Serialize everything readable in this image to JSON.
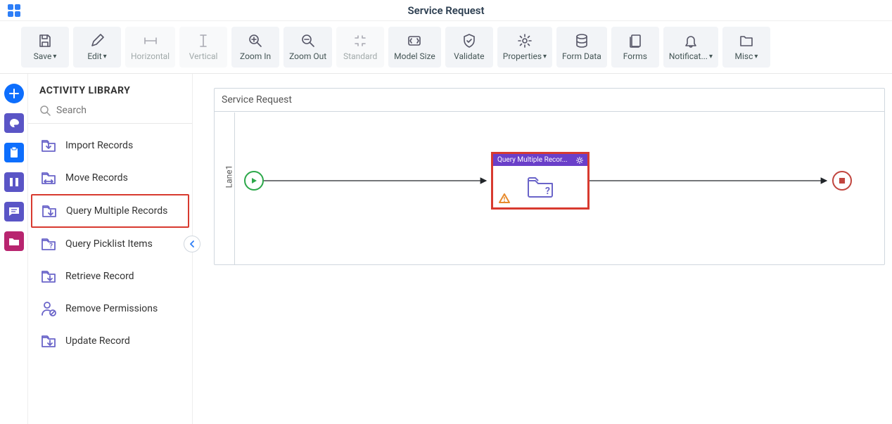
{
  "header": {
    "title": "Service Request"
  },
  "toolbar": [
    {
      "id": "save",
      "label": "Save",
      "dropdown": true,
      "enabled": true
    },
    {
      "id": "edit",
      "label": "Edit",
      "dropdown": true,
      "enabled": true
    },
    {
      "id": "horizontal",
      "label": "Horizontal",
      "dropdown": false,
      "enabled": false
    },
    {
      "id": "vertical",
      "label": "Vertical",
      "dropdown": false,
      "enabled": false
    },
    {
      "id": "zoomin",
      "label": "Zoom In",
      "dropdown": false,
      "enabled": true
    },
    {
      "id": "zoomout",
      "label": "Zoom Out",
      "dropdown": false,
      "enabled": true
    },
    {
      "id": "standard",
      "label": "Standard",
      "dropdown": false,
      "enabled": false
    },
    {
      "id": "modelsize",
      "label": "Model Size",
      "dropdown": false,
      "enabled": true
    },
    {
      "id": "validate",
      "label": "Validate",
      "dropdown": false,
      "enabled": true
    },
    {
      "id": "properties",
      "label": "Properties",
      "dropdown": true,
      "enabled": true
    },
    {
      "id": "formdata",
      "label": "Form Data",
      "dropdown": false,
      "enabled": true
    },
    {
      "id": "forms",
      "label": "Forms",
      "dropdown": false,
      "enabled": true
    },
    {
      "id": "notif",
      "label": "Notificat...",
      "dropdown": true,
      "enabled": true
    },
    {
      "id": "misc",
      "label": "Misc",
      "dropdown": true,
      "enabled": true
    }
  ],
  "rail": {
    "add_color": "#0d6efd",
    "palette_color": "#5a55c6",
    "clipboard_color": "#0d6efd",
    "columns_color": "#5a55c6",
    "chat_color": "#5a55c6",
    "folder_color": "#b8256f"
  },
  "library": {
    "header": "ACTIVITY LIBRARY",
    "search_placeholder": "Search",
    "items": [
      {
        "id": "import",
        "label": "Import Records",
        "icon_color": "#6a64c9",
        "highlight": false
      },
      {
        "id": "move",
        "label": "Move Records",
        "icon_color": "#6a64c9",
        "highlight": false
      },
      {
        "id": "querymulti",
        "label": "Query Multiple Records",
        "icon_color": "#6a64c9",
        "highlight": true
      },
      {
        "id": "querypick",
        "label": "Query Picklist Items",
        "icon_color": "#6a64c9",
        "highlight": false
      },
      {
        "id": "retrieve",
        "label": "Retrieve Record",
        "icon_color": "#6a64c9",
        "highlight": false
      },
      {
        "id": "removeperm",
        "label": "Remove Permissions",
        "icon_color": "#6a64c9",
        "highlight": false
      },
      {
        "id": "update",
        "label": "Update Record",
        "icon_color": "#6a64c9",
        "highlight": false
      }
    ]
  },
  "canvas": {
    "title": "Service Request",
    "lane_label": "Lane1",
    "activity_label": "Query Multiple Recor...",
    "colors": {
      "start": "#2ca84a",
      "end": "#c1453e",
      "highlight": "#d83a2f",
      "activity_head": "#6a3fc9",
      "warn": "#e78a2c",
      "line": "#212529"
    }
  }
}
